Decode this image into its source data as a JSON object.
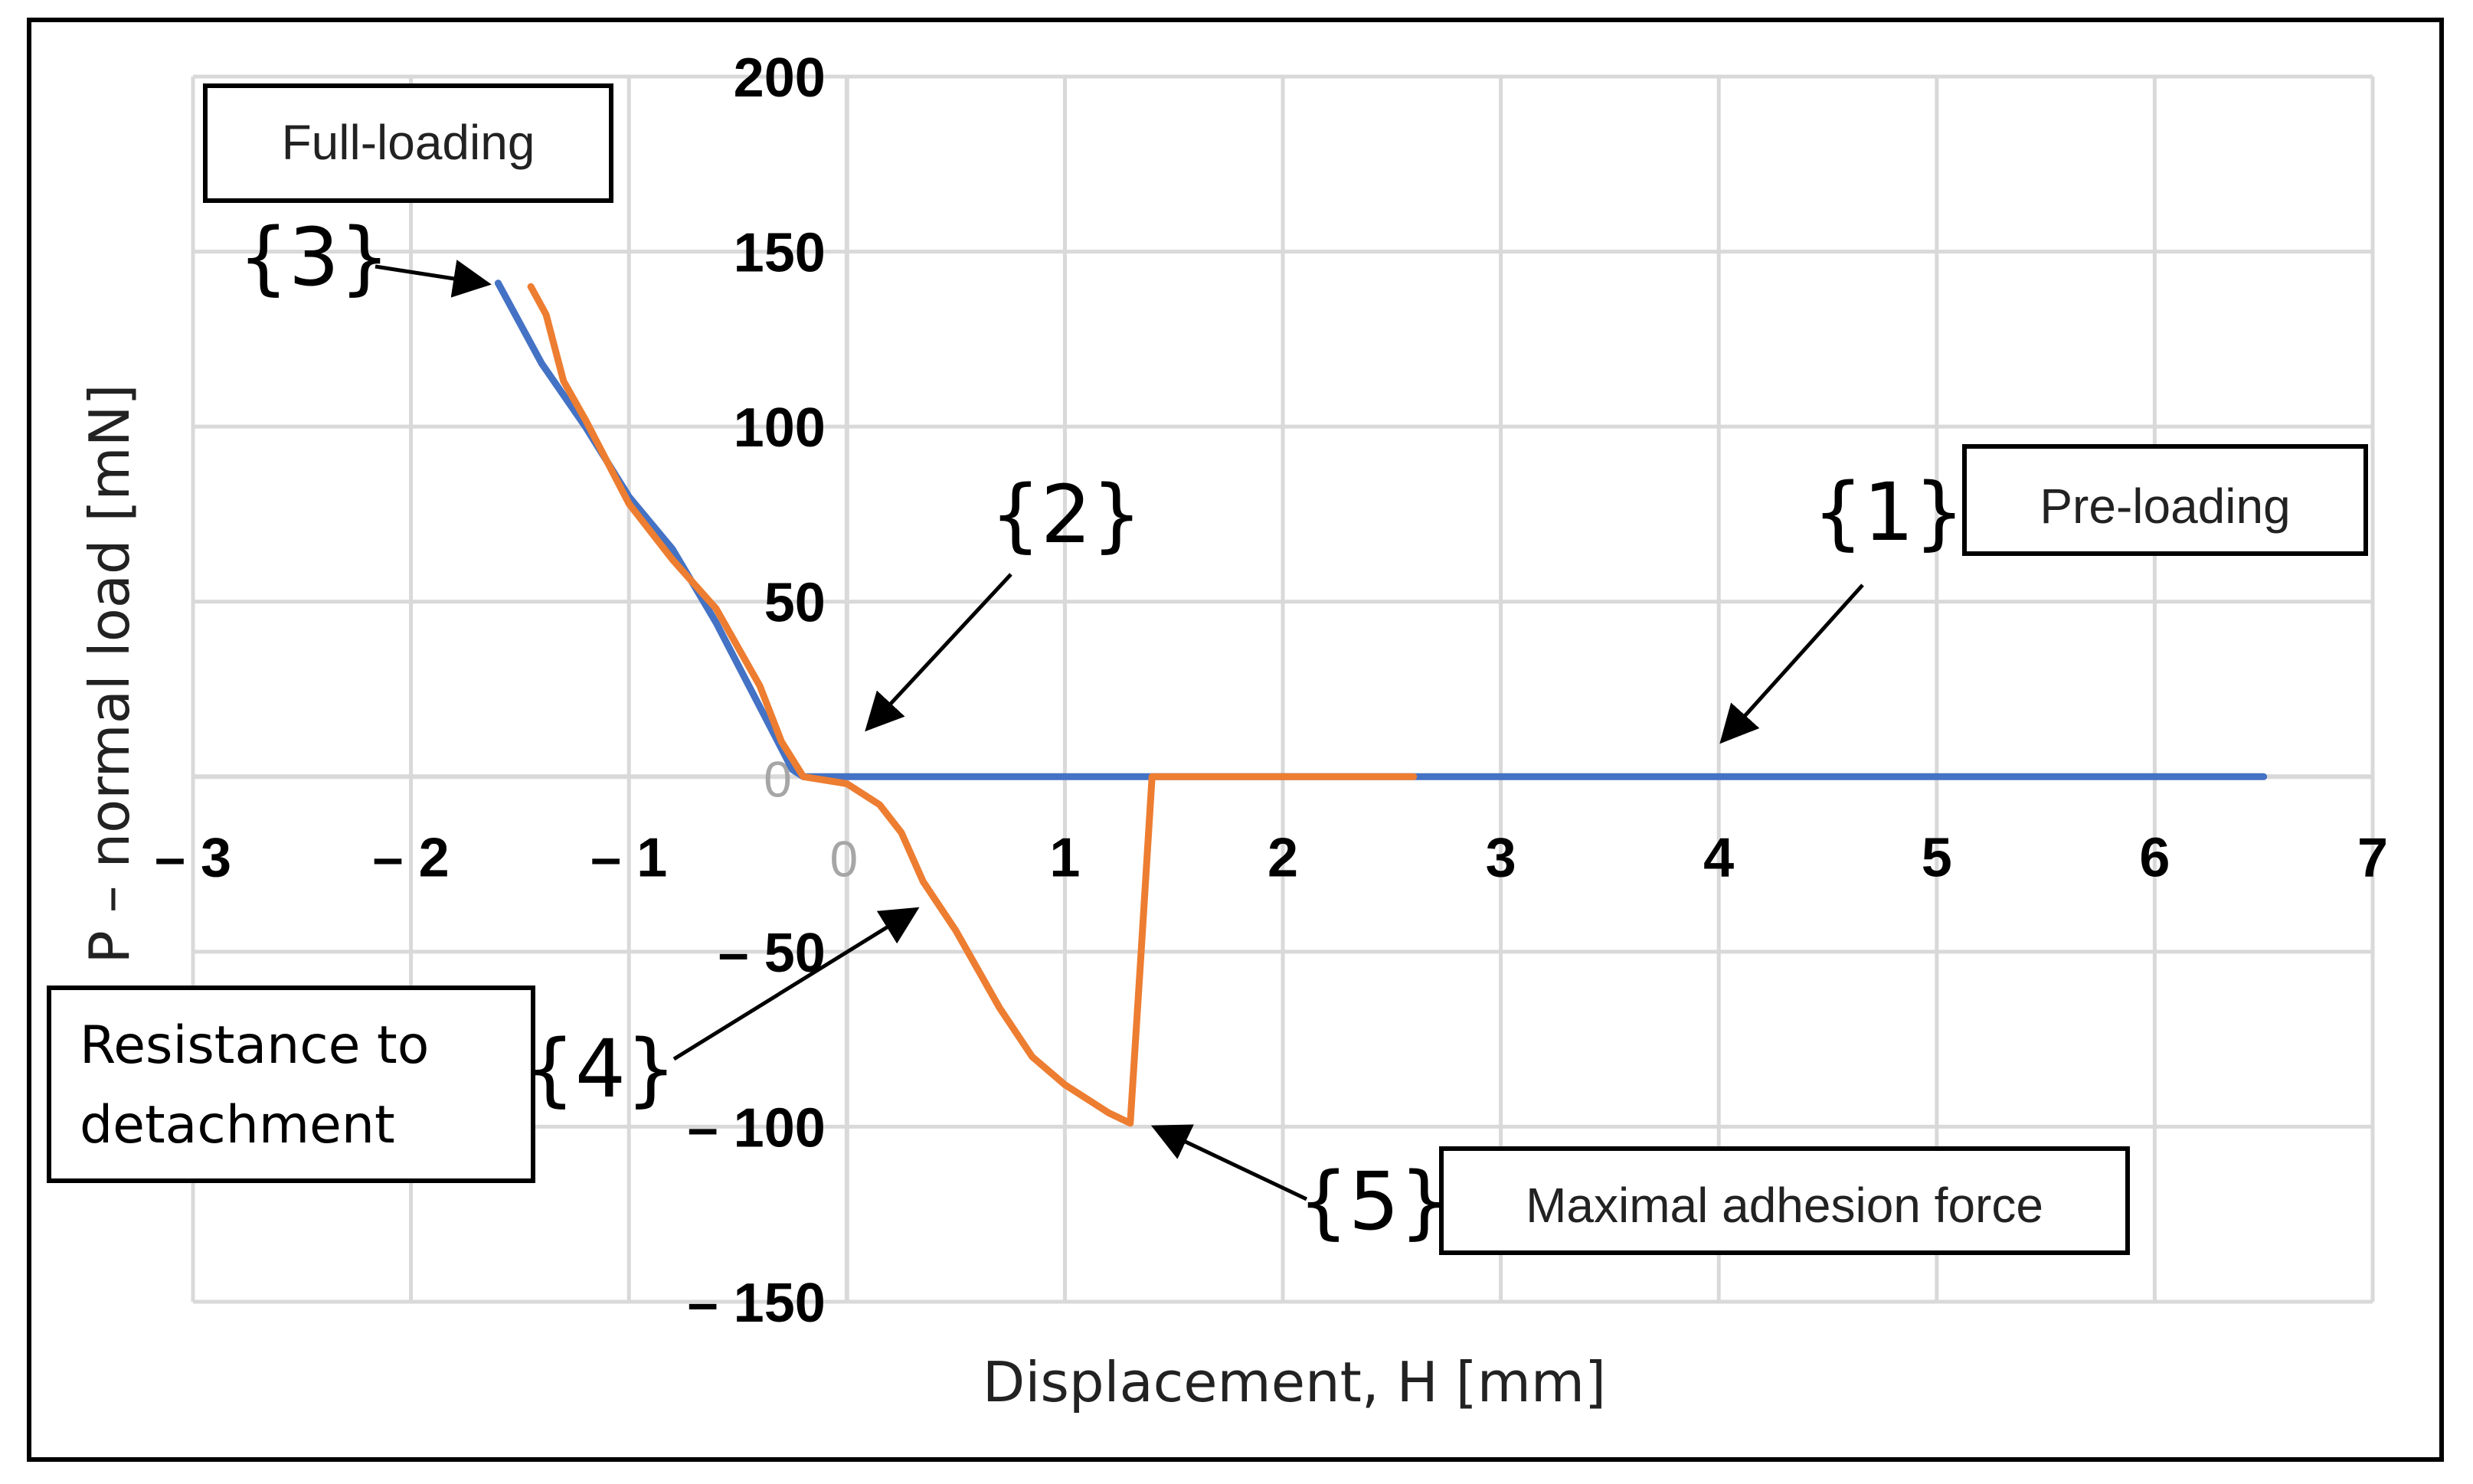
{
  "chart_data": {
    "type": "line",
    "xlabel": "Displacement, H [mm]",
    "ylabel": "P – normal load [mN]",
    "xlim": [
      -3,
      7
    ],
    "ylim": [
      -150,
      200
    ],
    "grid": true,
    "x_ticks": [
      {
        "value": -3,
        "label": "– 3"
      },
      {
        "value": -2,
        "label": "– 2"
      },
      {
        "value": -1,
        "label": "– 1"
      },
      {
        "value": 0,
        "label": "0"
      },
      {
        "value": 1,
        "label": "1"
      },
      {
        "value": 2,
        "label": "2"
      },
      {
        "value": 3,
        "label": "3"
      },
      {
        "value": 4,
        "label": "4"
      },
      {
        "value": 5,
        "label": "5"
      },
      {
        "value": 6,
        "label": "6"
      },
      {
        "value": 7,
        "label": "7"
      }
    ],
    "y_ticks": [
      {
        "value": 200,
        "label": "200"
      },
      {
        "value": 150,
        "label": "150"
      },
      {
        "value": 100,
        "label": "100"
      },
      {
        "value": 50,
        "label": "50"
      },
      {
        "value": 0,
        "label": "0"
      },
      {
        "value": -50,
        "label": "– 50"
      },
      {
        "value": -100,
        "label": "– 100"
      },
      {
        "value": -150,
        "label": "– 150"
      }
    ],
    "series": [
      {
        "color": "#4472c4",
        "x": [
          6.5,
          4.0,
          2.0,
          0.0,
          -0.2,
          -0.25,
          -0.4,
          -0.6,
          -0.8,
          -1.0,
          -1.2,
          -1.4,
          -1.6
        ],
        "y": [
          0,
          0,
          0,
          0,
          0,
          2,
          20,
          44,
          65,
          80,
          100,
          118,
          141
        ]
      },
      {
        "color": "#ed7d31",
        "x": [
          2.6,
          2.0,
          1.4,
          1.35,
          1.3,
          1.2,
          1.0,
          0.85,
          0.7,
          0.5,
          0.35,
          0.25,
          0.15,
          0.0,
          -0.2,
          -0.3,
          -0.4,
          -0.6,
          -0.8,
          -1.0,
          -1.2,
          -1.3,
          -1.38,
          -1.45
        ],
        "y": [
          0,
          0,
          0,
          -50,
          -99,
          -96,
          -88,
          -80,
          -66,
          -44,
          -30,
          -16,
          -8,
          -2,
          0,
          10,
          26,
          48,
          62,
          78,
          102,
          113,
          132,
          140
        ]
      }
    ]
  },
  "annotations": {
    "full_loading": "Full-loading",
    "pre_loading": "Pre-loading",
    "resistance_line1": "Resistance to",
    "resistance_line2": "detachment",
    "maximal_adhesion": "Maximal  adhesion  force"
  },
  "markers": {
    "m1": "{1}",
    "m2": "{2}",
    "m3": "{3}",
    "m4": "{4}",
    "m5": "{5}"
  }
}
